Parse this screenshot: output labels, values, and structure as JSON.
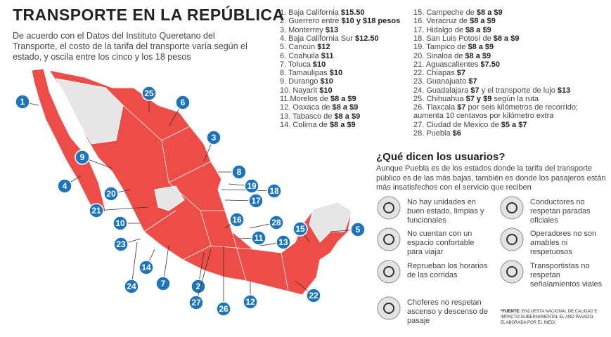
{
  "title": "TRANSPORTE EN LA REPÚBLICA",
  "intro": "De acuerdo con el Datos del Instituto Queretano del Transporte, el costo de la tarifa del transporte varía según el estado, y oscila entre los cinco y los 18 pesos",
  "prices": [
    [
      "1. Baja California",
      "$15.50"
    ],
    [
      "2. Guerrero entre",
      "$10 y $18 pesos"
    ],
    [
      "3. Monterrey",
      "$13"
    ],
    [
      "4. Baja California Sur",
      "$12.50"
    ],
    [
      "5. Cancún",
      "$12"
    ],
    [
      "6. Coahuila",
      "$11"
    ],
    [
      "7. Toluca",
      "$10"
    ],
    [
      "8. Tamaulipas",
      "$10"
    ],
    [
      "9. Durango",
      "$10"
    ],
    [
      "10. Nayarit",
      "$10"
    ],
    [
      "11.Morelos de",
      "$8 a $9"
    ],
    [
      "12. Oaxaca de",
      "$8 a $9"
    ],
    [
      "13. Tabasco de",
      "$8 a $9"
    ],
    [
      "14. Colima de",
      "$8 a $9"
    ],
    [
      "15. Campeche de",
      "$8 a $9"
    ],
    [
      "16. Veracruz de",
      "$8 a $9"
    ],
    [
      "17. Hidalgo de",
      "$8 a $9"
    ],
    [
      "18. San Luis Potosí de",
      "$8 a $9"
    ],
    [
      "19. Tampico de",
      "$8 a $9"
    ],
    [
      "20. Sinaloa de",
      "$8 a $9"
    ],
    [
      "21. Aguascalientes",
      "$7.50"
    ],
    [
      "22. Chiapas",
      "$7"
    ],
    [
      "23. Guanajuato",
      "$7"
    ],
    [
      "24. Guadalajara",
      "$7",
      "y el transporte de lujo",
      "$13"
    ],
    [
      "25. Chihuahua",
      "$7 y $9",
      "según la ruta"
    ],
    [
      "26. Tlaxcala",
      "$7",
      "por seis kilómetros de recorrido; aumenta 10 centavos por kilómetro extra"
    ],
    [
      "27. Ciudad de México de",
      "$5 a $7"
    ],
    [
      "28. Puebla",
      "$6"
    ]
  ],
  "map": {
    "markers": [
      "1",
      "2",
      "3",
      "4",
      "5",
      "6",
      "7",
      "8",
      "9",
      "10",
      "11",
      "12",
      "13",
      "14",
      "15",
      "16",
      "17",
      "18",
      "19",
      "20",
      "21",
      "22",
      "23",
      "24",
      "25",
      "26",
      "27",
      "28"
    ]
  },
  "section": {
    "title": "¿Qué dicen los usuarios?",
    "text": "Aunque Puebla es de los estados donde la tarifa del transporte público es de las más bajas, también es donde los pasajeros están más insatisfechos con el servicio que reciben"
  },
  "complaints": [
    "No hay unidades en buen estado, limpias y funcionales",
    "Conductores no respetan paradas oficiales",
    "No cuentan con un espacio confortable para viajar",
    "Operadores no son amables ni respetuosos",
    "Reprueban los horarios de las corridas",
    "Transportistas no respetan señalamientos viales",
    "Choferes no respetan ascenso y descenso de pasaje"
  ],
  "footnote": {
    "label": "*FUENTE:",
    "text": "ENCUESTA NACIONAL DE CALIDAD E IMPACTO GUBERNAMENTAL EL AÑO PASADO, ELABORADA POR EL INEGI"
  }
}
